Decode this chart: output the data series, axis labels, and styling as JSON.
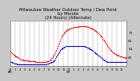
{
  "title_line1": "Milwaukee Weather Outdoor Temp / Dew Point",
  "title_line2": "by Minute",
  "title_line3": "(24 Hours) (Alternate)",
  "title_fontsize": 3.8,
  "background_color": "#c8c8c8",
  "plot_bg_color": "#ffffff",
  "grid_color": "#999999",
  "temp_color": "#ff0000",
  "dew_color": "#0000dd",
  "ylim": [
    30,
    85
  ],
  "xlim": [
    0,
    1439
  ],
  "temp_data": [
    48,
    47,
    46,
    45,
    45,
    44,
    44,
    43,
    43,
    42,
    42,
    41,
    41,
    41,
    40,
    40,
    40,
    39,
    39,
    39,
    38,
    38,
    38,
    38,
    38,
    38,
    38,
    37,
    37,
    37,
    37,
    37,
    37,
    37,
    37,
    37,
    37,
    36,
    36,
    36,
    36,
    36,
    36,
    36,
    36,
    36,
    36,
    36,
    36,
    36,
    36,
    36,
    35,
    35,
    35,
    35,
    35,
    35,
    35,
    35,
    35,
    35,
    35,
    35,
    35,
    35,
    35,
    35,
    35,
    35,
    35,
    35,
    35,
    35,
    35,
    36,
    36,
    36,
    36,
    36,
    36,
    37,
    37,
    38,
    38,
    39,
    39,
    40,
    41,
    42,
    43,
    44,
    45,
    47,
    48,
    49,
    51,
    52,
    54,
    55,
    57,
    58,
    60,
    61,
    63,
    64,
    65,
    66,
    67,
    68,
    69,
    70,
    70,
    71,
    72,
    72,
    73,
    73,
    74,
    74,
    74,
    75,
    75,
    75,
    75,
    76,
    76,
    76,
    76,
    76,
    77,
    77,
    77,
    77,
    77,
    77,
    77,
    77,
    77,
    77,
    77,
    78,
    78,
    78,
    78,
    78,
    78,
    78,
    78,
    78,
    78,
    78,
    78,
    78,
    78,
    78,
    78,
    78,
    77,
    77,
    77,
    77,
    77,
    76,
    76,
    76,
    76,
    75,
    75,
    75,
    74,
    74,
    74,
    73,
    73,
    72,
    72,
    71,
    71,
    70,
    70,
    69,
    69,
    68,
    67,
    67,
    66,
    65,
    65,
    64,
    63,
    62,
    62,
    61,
    60,
    59,
    58,
    57,
    56,
    55,
    54,
    53,
    52,
    52,
    51,
    50,
    49,
    49,
    48,
    47,
    47,
    46,
    46,
    45,
    45,
    44,
    44,
    44,
    43,
    43,
    43,
    42,
    42,
    42,
    42,
    41,
    41,
    41,
    41,
    41,
    40,
    40,
    40,
    40,
    40,
    40,
    39,
    39,
    39,
    40
  ],
  "dew_data": [
    35,
    35,
    35,
    35,
    34,
    34,
    34,
    34,
    33,
    33,
    33,
    33,
    33,
    33,
    32,
    32,
    32,
    32,
    32,
    32,
    32,
    32,
    32,
    32,
    32,
    32,
    32,
    32,
    32,
    32,
    32,
    32,
    32,
    32,
    32,
    32,
    32,
    32,
    32,
    32,
    32,
    32,
    32,
    32,
    32,
    32,
    32,
    32,
    32,
    32,
    32,
    32,
    32,
    32,
    32,
    32,
    32,
    32,
    32,
    32,
    32,
    32,
    32,
    32,
    32,
    32,
    32,
    32,
    32,
    32,
    32,
    32,
    32,
    32,
    32,
    32,
    33,
    33,
    33,
    33,
    33,
    34,
    34,
    34,
    34,
    35,
    35,
    35,
    36,
    36,
    37,
    37,
    38,
    39,
    40,
    41,
    42,
    43,
    44,
    45,
    46,
    47,
    48,
    49,
    50,
    50,
    51,
    51,
    52,
    52,
    52,
    53,
    53,
    53,
    54,
    54,
    54,
    54,
    54,
    54,
    54,
    54,
    54,
    54,
    54,
    54,
    54,
    54,
    54,
    54,
    54,
    54,
    54,
    54,
    54,
    54,
    54,
    54,
    54,
    54,
    54,
    54,
    54,
    54,
    54,
    54,
    54,
    54,
    54,
    54,
    54,
    54,
    54,
    54,
    53,
    53,
    53,
    53,
    52,
    52,
    52,
    52,
    51,
    51,
    50,
    50,
    50,
    49,
    49,
    48,
    48,
    47,
    47,
    46,
    46,
    45,
    45,
    44,
    44,
    43,
    43,
    42,
    42,
    42,
    41,
    41,
    40,
    40,
    39,
    39,
    38,
    38,
    38,
    37,
    37,
    37,
    36,
    36,
    35,
    35,
    35,
    35,
    35,
    35,
    35,
    35,
    35,
    35,
    35,
    35,
    35,
    35,
    35,
    35,
    35,
    35,
    35,
    35,
    35,
    35,
    35,
    35,
    35,
    35,
    35,
    35,
    35,
    35,
    35,
    35,
    35,
    35,
    35,
    35,
    35,
    35,
    35,
    35,
    35,
    35
  ],
  "xtick_positions": [
    0,
    60,
    120,
    180,
    240,
    300,
    360,
    420,
    480,
    540,
    600,
    660,
    720,
    780,
    840,
    900,
    960,
    1020,
    1080,
    1140,
    1200,
    1260,
    1320,
    1380
  ],
  "xtick_labels": [
    "12\nAM",
    "1",
    "2",
    "3",
    "4",
    "5",
    "6",
    "7",
    "8",
    "9",
    "10",
    "11",
    "12\nPM",
    "1",
    "2",
    "3",
    "4",
    "5",
    "6",
    "7",
    "8",
    "9",
    "10",
    "11"
  ],
  "ytick_values": [
    41,
    51,
    61,
    71
  ],
  "xtick_fontsize": 2.5,
  "ytick_fontsize": 3.2,
  "marker_size": 0.7,
  "linewidth": 0.0
}
